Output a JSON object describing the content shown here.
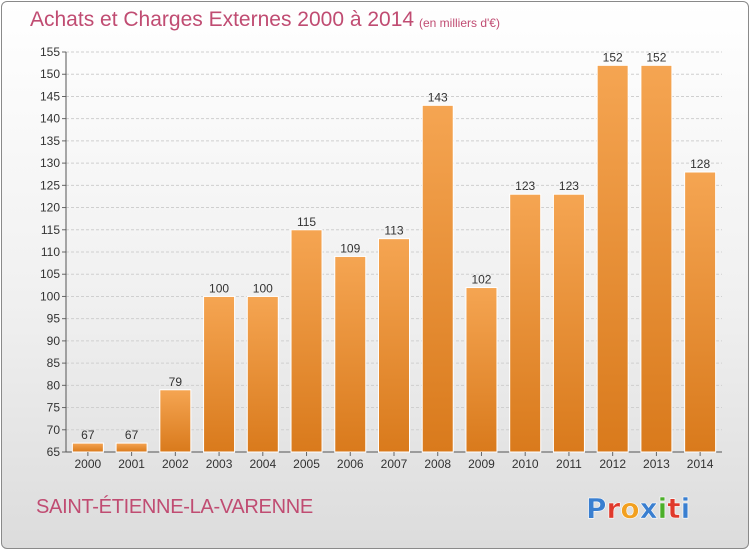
{
  "header": {
    "title": "Achats et Charges Externes 2000 à 2014",
    "subtitle": "(en milliers d'€)"
  },
  "footer": {
    "commune": "SAINT-ÉTIENNE-LA-VARENNE",
    "logo_text": "Proxiti",
    "logo_colors": [
      "#3a7fd0",
      "#e0392b",
      "#f2a020",
      "#3a7fd0",
      "#4caf2a",
      "#e0392b",
      "#3a7fd0"
    ]
  },
  "chart_data": {
    "type": "bar",
    "title": "Achats et Charges Externes 2000 à 2014",
    "subtitle": "(en milliers d'€)",
    "categories": [
      "2000",
      "2001",
      "2002",
      "2003",
      "2004",
      "2005",
      "2006",
      "2007",
      "2008",
      "2009",
      "2010",
      "2011",
      "2012",
      "2013",
      "2014"
    ],
    "values": [
      67,
      67,
      79,
      100,
      100,
      115,
      109,
      113,
      143,
      102,
      123,
      123,
      152,
      152,
      128
    ],
    "data_labels": [
      "67",
      "67",
      "79",
      "100",
      "100",
      "115",
      "109",
      "113",
      "143",
      "102",
      "123",
      "123",
      "152",
      "152",
      "128"
    ],
    "ylim": [
      65,
      155
    ],
    "yticks": [
      65,
      70,
      75,
      80,
      85,
      90,
      95,
      100,
      105,
      110,
      115,
      120,
      125,
      130,
      135,
      140,
      145,
      150,
      155
    ],
    "xlabel": "",
    "ylabel": "",
    "grid": true,
    "bar_color_top": "#f5a552",
    "bar_color_bottom": "#d97a1c"
  }
}
